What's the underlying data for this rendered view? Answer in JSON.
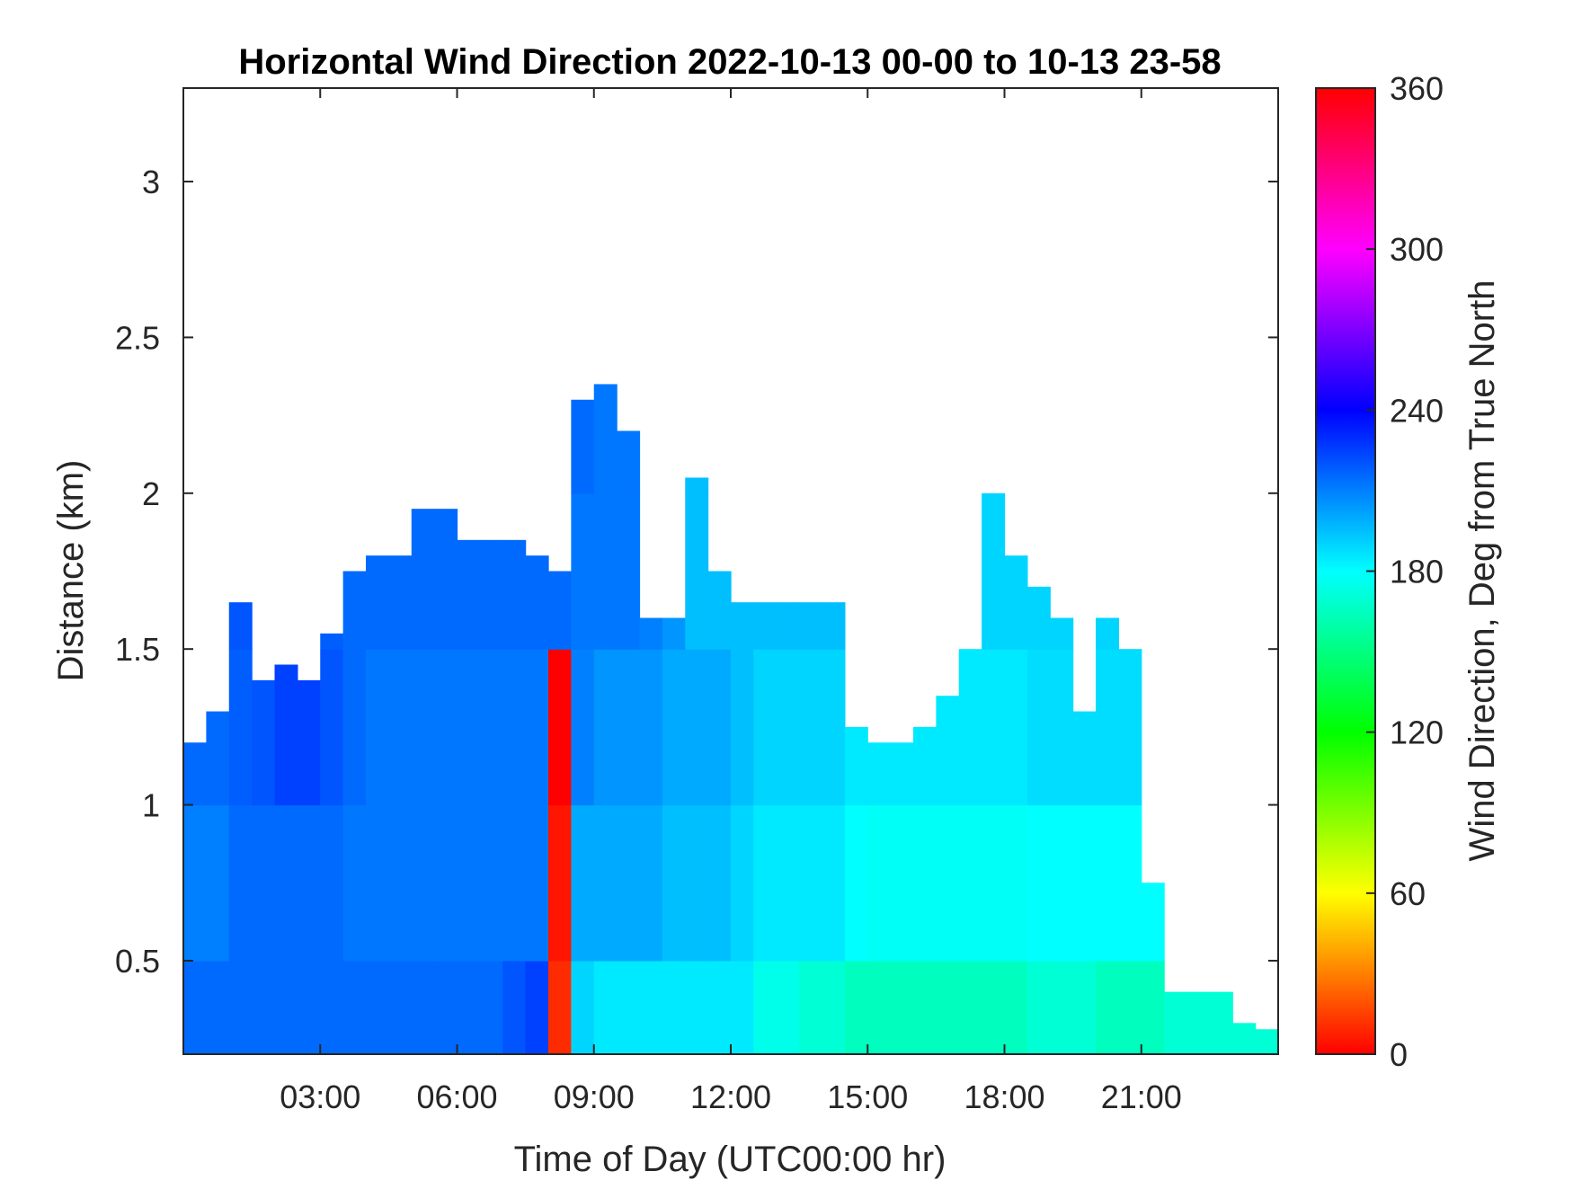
{
  "chart_data": {
    "type": "heatmap",
    "title": "Horizontal Wind Direction 2022-10-13 00-00 to 10-13 23-58",
    "xlabel": "Time of Day (UTC00:00 hr)",
    "ylabel": "Distance (km)",
    "colorbar_label": "Wind Direction, Deg from True North",
    "xlim_hours": [
      0,
      24
    ],
    "ylim": [
      0.2,
      3.3
    ],
    "x_ticks": [
      {
        "value": 3,
        "label": "03:00"
      },
      {
        "value": 6,
        "label": "06:00"
      },
      {
        "value": 9,
        "label": "09:00"
      },
      {
        "value": 12,
        "label": "12:00"
      },
      {
        "value": 15,
        "label": "15:00"
      },
      {
        "value": 18,
        "label": "18:00"
      },
      {
        "value": 21,
        "label": "21:00"
      }
    ],
    "y_ticks": [
      {
        "value": 0.5,
        "label": "0.5"
      },
      {
        "value": 1,
        "label": "1"
      },
      {
        "value": 1.5,
        "label": "1.5"
      },
      {
        "value": 2,
        "label": "2"
      },
      {
        "value": 2.5,
        "label": "2.5"
      },
      {
        "value": 3,
        "label": "3"
      }
    ],
    "colorbar": {
      "range": [
        0,
        360
      ],
      "ticks": [
        {
          "value": 0,
          "label": "0"
        },
        {
          "value": 60,
          "label": "60"
        },
        {
          "value": 120,
          "label": "120"
        },
        {
          "value": 180,
          "label": "180"
        },
        {
          "value": 240,
          "label": "240"
        },
        {
          "value": 300,
          "label": "300"
        },
        {
          "value": 360,
          "label": "360"
        }
      ],
      "colormap": "hsv (red-yellow-green-cyan-blue-magenta-red)"
    },
    "time_columns_hours": [
      0,
      0.5,
      1,
      1.5,
      2,
      2.5,
      3,
      3.5,
      4,
      4.5,
      5,
      5.5,
      6,
      6.5,
      7,
      7.5,
      8,
      8.5,
      9,
      9.5,
      10,
      10.5,
      11,
      11.5,
      12,
      12.5,
      13,
      13.5,
      14,
      14.5,
      15,
      15.5,
      16,
      16.5,
      17,
      17.5,
      18,
      18.5,
      19,
      19.5,
      20,
      20.5,
      21,
      21.5,
      22,
      22.5,
      23,
      23.5
    ],
    "valid_top_km": [
      1.2,
      1.3,
      1.65,
      1.4,
      1.45,
      1.4,
      1.55,
      1.75,
      1.8,
      1.8,
      1.95,
      1.95,
      1.85,
      1.85,
      1.85,
      1.8,
      1.75,
      2.3,
      2.35,
      2.2,
      1.6,
      1.6,
      2.05,
      1.75,
      1.65,
      1.65,
      1.65,
      1.65,
      1.65,
      1.25,
      1.2,
      1.2,
      1.25,
      1.35,
      1.5,
      2.0,
      1.8,
      1.7,
      1.6,
      1.3,
      1.6,
      1.5,
      0.75,
      0.4,
      0.4,
      0.4,
      0.3,
      0.28
    ],
    "direction_layers": [
      {
        "label": "0.2-0.5 km",
        "values_deg": [
          215,
          215,
          215,
          215,
          215,
          215,
          215,
          215,
          215,
          215,
          215,
          215,
          215,
          215,
          220,
          225,
          10,
          190,
          185,
          185,
          185,
          185,
          185,
          185,
          185,
          175,
          175,
          170,
          170,
          165,
          165,
          165,
          165,
          165,
          165,
          165,
          165,
          170,
          170,
          170,
          165,
          165,
          165,
          170,
          170,
          170,
          170,
          170
        ]
      },
      {
        "label": "0.5-1.0 km",
        "values_deg": [
          210,
          210,
          215,
          215,
          215,
          215,
          215,
          212,
          212,
          212,
          212,
          212,
          212,
          212,
          212,
          212,
          5,
          200,
          200,
          200,
          200,
          195,
          195,
          195,
          190,
          185,
          185,
          185,
          185,
          180,
          178,
          178,
          178,
          178,
          178,
          178,
          178,
          180,
          180,
          180,
          180,
          180,
          180,
          180,
          180,
          180,
          180,
          180
        ]
      },
      {
        "label": "1.0-1.5 km",
        "values_deg": [
          215,
          215,
          218,
          220,
          225,
          225,
          220,
          215,
          212,
          212,
          212,
          212,
          212,
          212,
          212,
          212,
          0,
          210,
          205,
          205,
          205,
          200,
          200,
          200,
          195,
          190,
          190,
          190,
          190,
          185,
          185,
          185,
          185,
          185,
          185,
          185,
          185,
          188,
          188,
          188,
          188,
          188,
          188,
          188,
          188,
          188,
          188,
          188
        ]
      },
      {
        "label": "1.5-2.0 km",
        "values_deg": [
          215,
          215,
          220,
          220,
          220,
          220,
          218,
          215,
          215,
          215,
          215,
          215,
          215,
          215,
          215,
          215,
          215,
          212,
          212,
          212,
          210,
          205,
          195,
          195,
          195,
          195,
          195,
          195,
          195,
          190,
          190,
          190,
          190,
          190,
          190,
          190,
          190,
          190,
          190,
          190,
          190,
          190,
          190,
          190,
          190,
          190,
          190,
          190
        ]
      },
      {
        "label": "2.0-3.3 km",
        "values_deg": [
          220,
          220,
          220,
          220,
          220,
          222,
          225,
          225,
          222,
          220,
          220,
          220,
          220,
          222,
          222,
          222,
          222,
          215,
          212,
          212,
          210,
          205,
          195,
          195,
          195,
          195,
          195,
          195,
          195,
          190,
          190,
          190,
          190,
          190,
          190,
          190,
          190,
          190,
          190,
          190,
          190,
          190,
          190,
          190,
          190,
          190,
          190,
          190
        ]
      }
    ]
  }
}
